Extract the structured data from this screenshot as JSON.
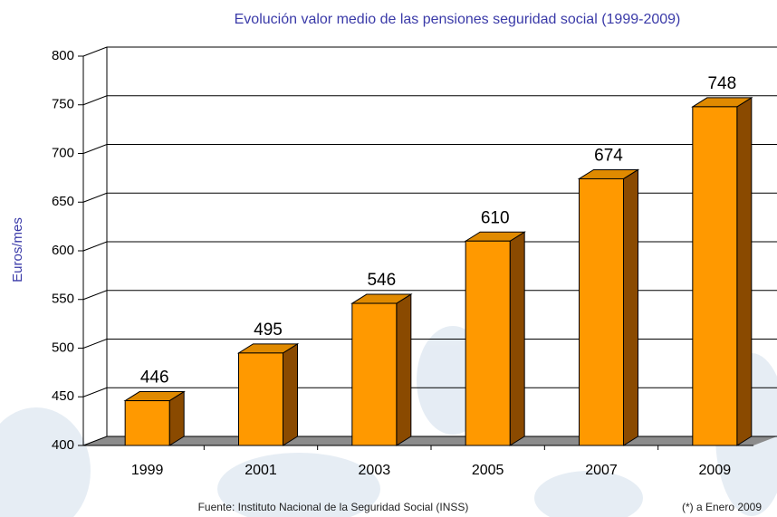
{
  "chart_data": {
    "type": "bar3d",
    "title": "Evolución valor medio de las pensiones seguridad social (1999-2009)",
    "y_label": "Euros/mes",
    "categories": [
      "1999",
      "2001",
      "2003",
      "2005",
      "2007",
      "2009"
    ],
    "values": [
      446,
      495,
      546,
      610,
      674,
      748
    ],
    "color": "#ff9900",
    "ylim": [
      400,
      800
    ],
    "yticks": [
      400,
      450,
      500,
      550,
      600,
      650,
      700,
      750,
      800
    ],
    "grid": true,
    "source": "Fuente: Instituto Nacional de la Seguridad Social (INSS)",
    "note": "(*) a Enero 2009"
  }
}
